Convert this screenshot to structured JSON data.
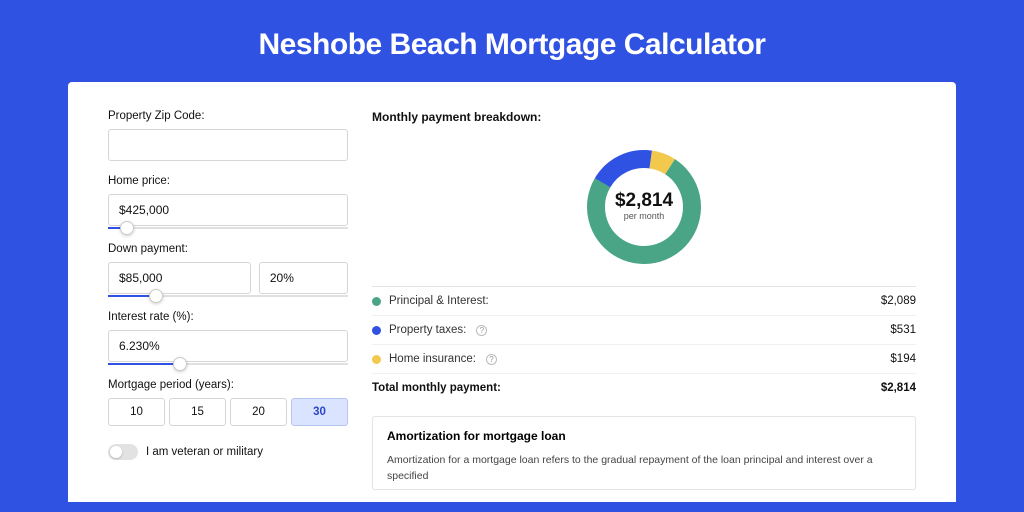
{
  "page": {
    "title": "Neshobe Beach Mortgage Calculator",
    "background_color": "#3052e3",
    "card_background": "#ffffff"
  },
  "form": {
    "zip_label": "Property Zip Code:",
    "zip_value": "",
    "home_price_label": "Home price:",
    "home_price_value": "$425,000",
    "home_price_slider_pct": 8,
    "down_payment_label": "Down payment:",
    "down_payment_value": "$85,000",
    "down_payment_pct_value": "20%",
    "down_payment_slider_pct": 20,
    "interest_label": "Interest rate (%):",
    "interest_value": "6.230%",
    "interest_slider_pct": 30,
    "period_label": "Mortgage period (years):",
    "periods": [
      "10",
      "15",
      "20",
      "30"
    ],
    "period_selected_index": 3,
    "veteran_label": "I am veteran or military",
    "veteran_on": false
  },
  "breakdown": {
    "title": "Monthly payment breakdown:",
    "center_value": "$2,814",
    "center_sub": "per month",
    "items": [
      {
        "label": "Principal & Interest:",
        "value": "$2,089",
        "color": "#4aa586",
        "has_info": false,
        "pct": 74.2
      },
      {
        "label": "Property taxes:",
        "value": "$531",
        "color": "#3052e3",
        "has_info": true,
        "pct": 18.9
      },
      {
        "label": "Home insurance:",
        "value": "$194",
        "color": "#f2c94c",
        "has_info": true,
        "pct": 6.9
      }
    ],
    "total_label": "Total monthly payment:",
    "total_value": "$2,814",
    "donut": {
      "radius": 48,
      "stroke_width": 18,
      "background": "#ffffff"
    }
  },
  "amortization": {
    "title": "Amortization for mortgage loan",
    "text": "Amortization for a mortgage loan refers to the gradual repayment of the loan principal and interest over a specified"
  }
}
